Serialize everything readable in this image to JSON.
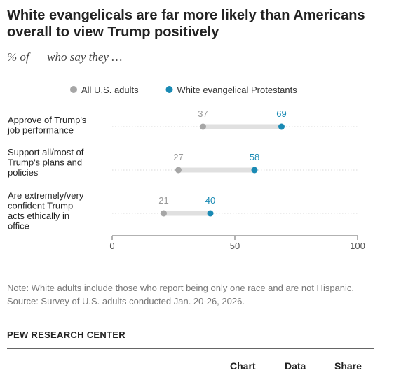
{
  "header": {
    "title": "White evangelicals are far more likely than Americans overall to view Trump positively",
    "subtitle": "% of __ who say they …"
  },
  "legend": {
    "items": [
      {
        "label": "All U.S. adults",
        "color": "#a6a6a6"
      },
      {
        "label": "White evangelical Protestants",
        "color": "#1a8ab4"
      }
    ]
  },
  "chart_data": {
    "type": "dot",
    "categories": [
      [
        "Approve of Trump's",
        "job performance"
      ],
      [
        "Support all/most of",
        "Trump's plans and",
        "policies"
      ],
      [
        "Are extremely/very",
        "confident Trump",
        "acts ethically in",
        "office"
      ]
    ],
    "series": [
      {
        "name": "All U.S. adults",
        "color": "#a6a6a6",
        "values": [
          37,
          27,
          21
        ]
      },
      {
        "name": "White evangelical Protestants",
        "color": "#1a8ab4",
        "values": [
          69,
          58,
          40
        ]
      }
    ],
    "xlim": [
      0,
      100
    ],
    "xticks": [
      0,
      50,
      100
    ],
    "grid": false,
    "legend_position": "top-center",
    "connector_color": "#e0e0e0"
  },
  "notes": {
    "note": "Note: White adults include those who report being only one race and are not Hispanic.",
    "source": "Source: Survey of U.S. adults conducted Jan. 20-26, 2026."
  },
  "brand": "PEW RESEARCH CENTER",
  "footer": {
    "chart_label": "Chart",
    "data_label": "Data",
    "share_label": "Share"
  }
}
